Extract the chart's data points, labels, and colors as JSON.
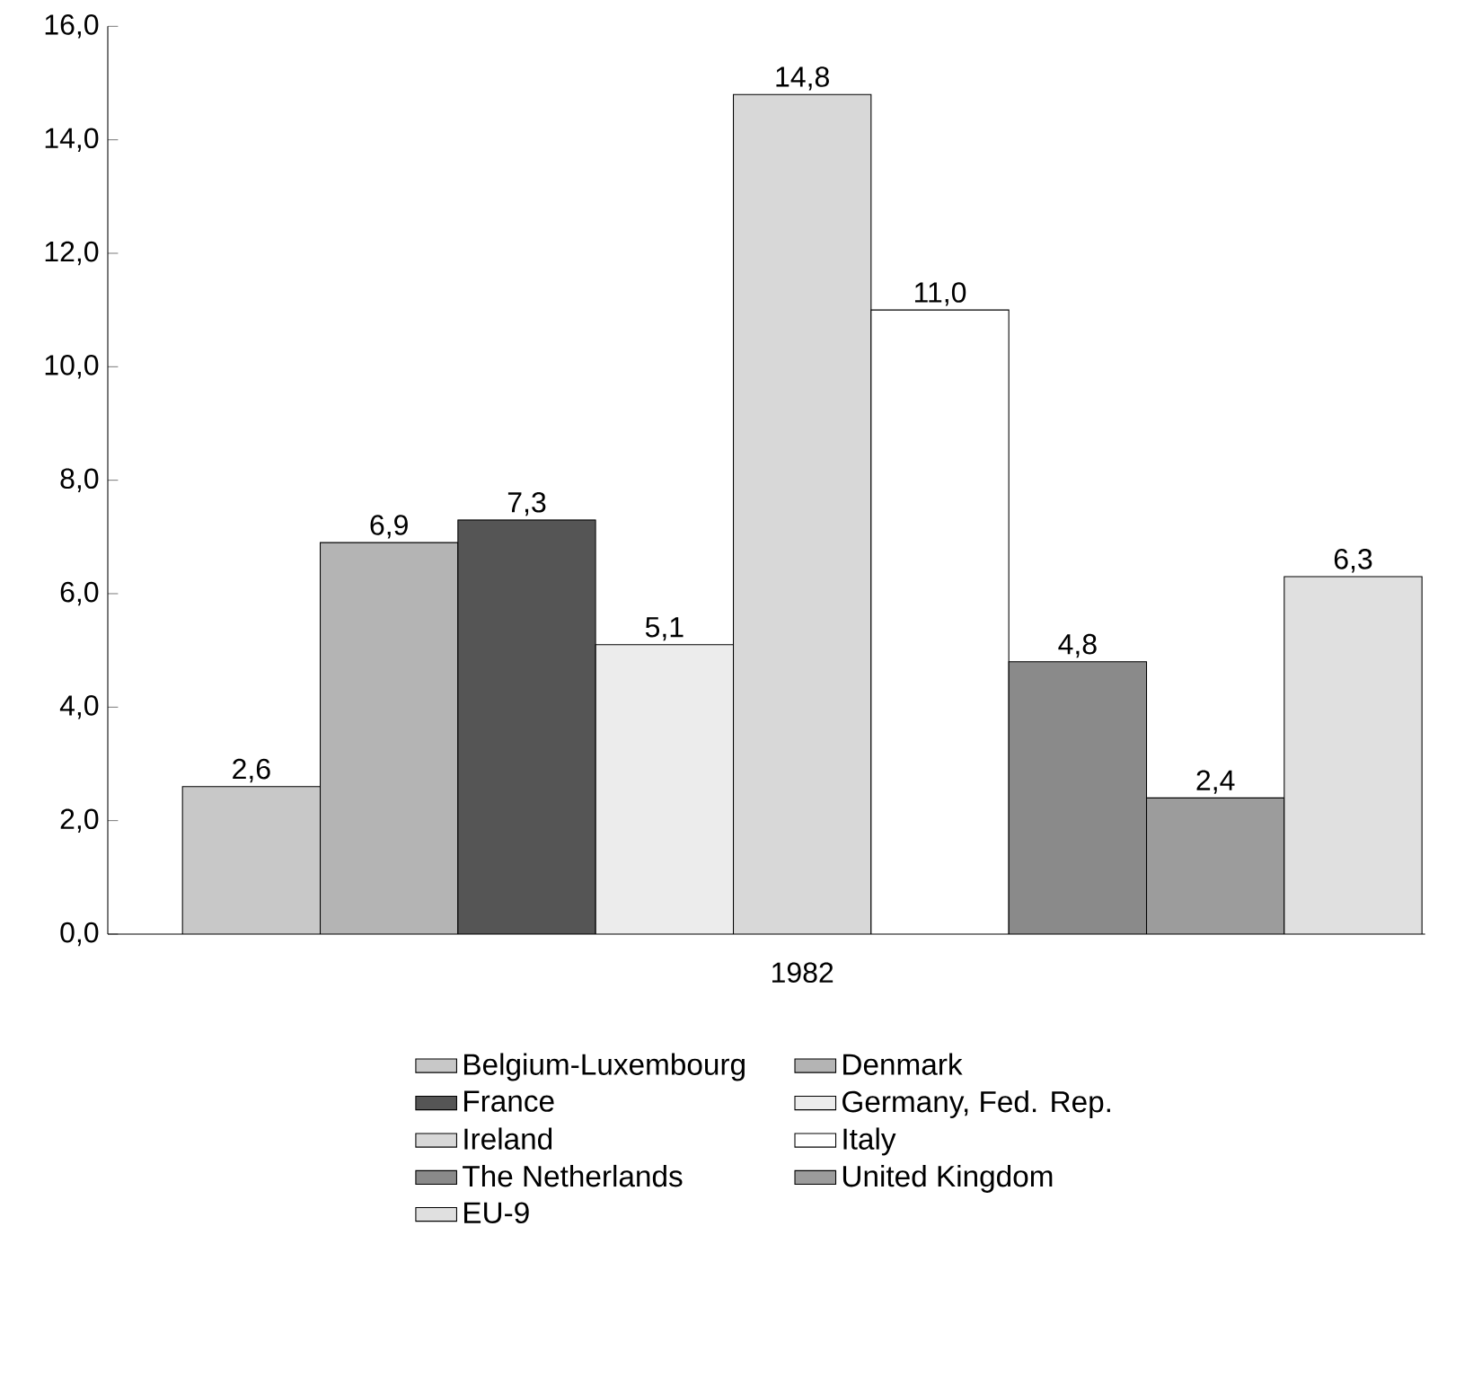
{
  "chart_data": {
    "type": "bar",
    "categories": [
      "1982"
    ],
    "ylim": [
      0,
      16
    ],
    "yticks": [
      {
        "value": 0,
        "label": "0,0"
      },
      {
        "value": 2,
        "label": "2,0"
      },
      {
        "value": 4,
        "label": "4,0"
      },
      {
        "value": 6,
        "label": "6,0"
      },
      {
        "value": 8,
        "label": "8,0"
      },
      {
        "value": 10,
        "label": "10,0"
      },
      {
        "value": 12,
        "label": "12,0"
      },
      {
        "value": 14,
        "label": "14,0"
      },
      {
        "value": 16,
        "label": "16,0"
      }
    ],
    "legend": "bottom",
    "grid": false,
    "series": [
      {
        "name": "Belgium-Luxembourg",
        "color": "#c8c8c8",
        "values": [
          2.6
        ],
        "value_labels": [
          "2,6"
        ]
      },
      {
        "name": "Denmark",
        "color": "#b4b4b4",
        "values": [
          6.9
        ],
        "value_labels": [
          "6,9"
        ]
      },
      {
        "name": "France",
        "color": "#555555",
        "values": [
          7.3
        ],
        "value_labels": [
          "7,3"
        ]
      },
      {
        "name": "Germany, Fed. Rep.",
        "color": "#ececec",
        "values": [
          5.1
        ],
        "value_labels": [
          "5,1"
        ]
      },
      {
        "name": "Ireland",
        "color": "#d8d8d8",
        "values": [
          14.8
        ],
        "value_labels": [
          "14,8"
        ]
      },
      {
        "name": "Italy",
        "color": "#ffffff",
        "values": [
          11.0
        ],
        "value_labels": [
          "11,0"
        ]
      },
      {
        "name": "The Netherlands",
        "color": "#8a8a8a",
        "values": [
          4.8
        ],
        "value_labels": [
          "4,8"
        ]
      },
      {
        "name": "United Kingdom",
        "color": "#9c9c9c",
        "values": [
          2.4
        ],
        "value_labels": [
          "2,4"
        ]
      },
      {
        "name": "EU-9",
        "color": "#e0e0e0",
        "values": [
          6.3
        ],
        "value_labels": [
          "6,3"
        ]
      }
    ]
  }
}
